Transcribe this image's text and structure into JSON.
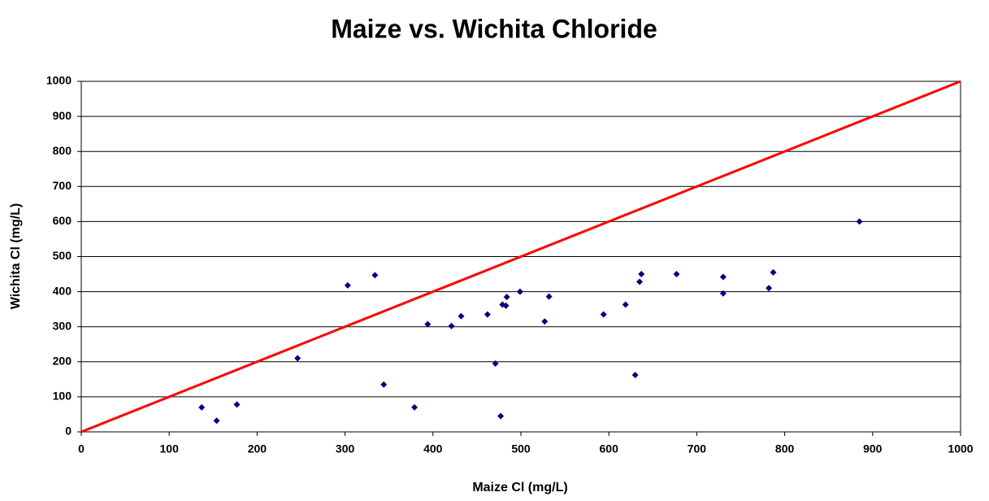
{
  "chart_data": {
    "type": "scatter",
    "title": "Maize vs. Wichita Chloride",
    "x_label": "Maize Cl (mg/L)",
    "y_label": "Wichita Cl (mg/L)",
    "xlim": [
      0,
      1000
    ],
    "ylim": [
      0,
      1000
    ],
    "xticks": [
      0,
      100,
      200,
      300,
      400,
      500,
      600,
      700,
      800,
      900,
      1000
    ],
    "yticks": [
      0,
      100,
      200,
      300,
      400,
      500,
      600,
      700,
      800,
      900,
      1000
    ],
    "grid": true,
    "series": [
      {
        "type": "scatter",
        "color": "#000080",
        "x": [
          137,
          154,
          177,
          246,
          303,
          334,
          344,
          379,
          394,
          421,
          432,
          462,
          471,
          477,
          479,
          483,
          484,
          499,
          527,
          532,
          594,
          619,
          630,
          635,
          637,
          677,
          730,
          730,
          782,
          787,
          885
        ],
        "values": [
          70,
          32,
          78,
          210,
          418,
          447,
          135,
          70,
          307,
          302,
          330,
          335,
          195,
          45,
          363,
          360,
          385,
          400,
          315,
          386,
          335,
          363,
          162,
          428,
          450,
          450,
          442,
          395,
          410,
          455,
          600
        ]
      },
      {
        "type": "line",
        "color": "#ff0000",
        "x": [
          0,
          1000
        ],
        "values": [
          0,
          1000
        ]
      }
    ]
  }
}
